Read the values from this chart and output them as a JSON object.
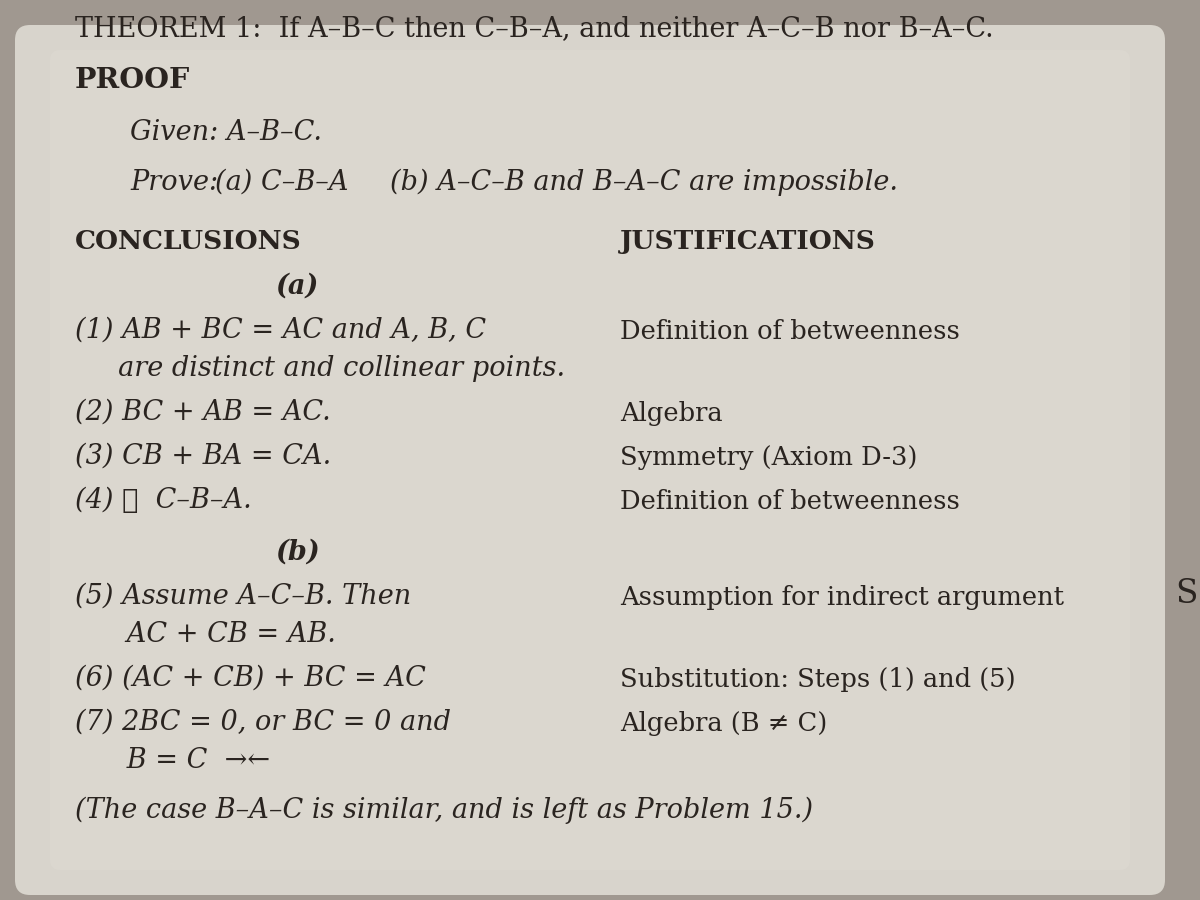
{
  "bg_color": "#a09890",
  "paper_color": "#d4cfc8",
  "paper_inner_color": "#dedad4",
  "text_color": "#2a2420",
  "title_normal": "THEOREM 1:  If ",
  "title": "THEOREM 1:  If A–B–C then C–B–A, and neither A–C–B nor B–A–C.",
  "proof_label": "PROOF",
  "given": "Given: A–B–C.",
  "prove_prefix": "Prove:",
  "prove_a": "(a) C–B–A",
  "prove_b": "(b) A–C–B and B–A–C are impossible.",
  "conclusions_header": "CONCLUSIONS",
  "justifications_header": "JUSTIFICATIONS",
  "part_a_label": "(a)",
  "part_b_label": "(b)",
  "step1_left": "(1) AB + BC = AC and A, B, C",
  "step1_left2": "     are distinct and collinear points.",
  "step2_left": "(2) BC + AB = AC.",
  "step3_left": "(3) CB + BA = CA.",
  "step4_left": "(4) ∴  C–B–A.",
  "step5_left": "(5) Assume A–C–B. Then",
  "step5_left2": "      AC + CB = AB.",
  "step6_left": "(6) (AC + CB) + BC = AC",
  "step7_left": "(7) 2BC = 0, or BC = 0 and",
  "step7_left2": "      B = C  →←",
  "just1": "Definition of betweenness",
  "just2": "Algebra",
  "just3": "Symmetry (Axiom D-3)",
  "just4": "Definition of betweenness",
  "just5": "Assumption for indirect argument",
  "just6": "Substitution: Steps (1) and (5)",
  "just7": "Algebra (B ≠ C)",
  "footer": "(The case B–A–C is similar, and is left as Problem 15.)",
  "side_s": "S"
}
